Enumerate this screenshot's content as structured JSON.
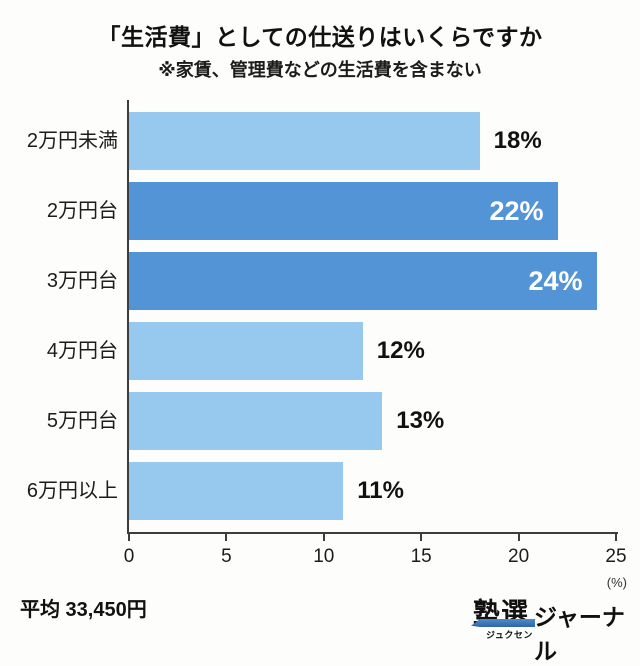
{
  "title": "「生活費」としての仕送りはいくらですか",
  "subtitle": "※家賃、管理費などの生活費を含まない",
  "chart_data": {
    "type": "bar",
    "orientation": "horizontal",
    "title": "「生活費」としての仕送りはいくらですか",
    "categories": [
      "2万円未満",
      "2万円台",
      "3万円台",
      "4万円台",
      "5万円台",
      "6万円以上"
    ],
    "values": [
      18,
      22,
      24,
      12,
      13,
      11
    ],
    "value_labels": [
      "18%",
      "22%",
      "24%",
      "12%",
      "13%",
      "11%"
    ],
    "highlighted": [
      false,
      true,
      true,
      false,
      false,
      false
    ],
    "xlim": [
      0,
      25
    ],
    "x_ticks": [
      0,
      5,
      10,
      15,
      20,
      25
    ],
    "x_unit_label": "(%)",
    "grid": false,
    "legend": "none",
    "colors": {
      "bar_light": "#96c9ed",
      "bar_dark": "#5294d5",
      "label_inside": "#ffffff",
      "label_outside": "#111111",
      "axis": "#3d3d3d"
    }
  },
  "footer": {
    "average_label": "平均 33,450円",
    "logo": {
      "main": "塾選",
      "furigana": "ジュクセン",
      "suffix": "ジャーナル",
      "pencil_color": "#2e66a8"
    }
  }
}
